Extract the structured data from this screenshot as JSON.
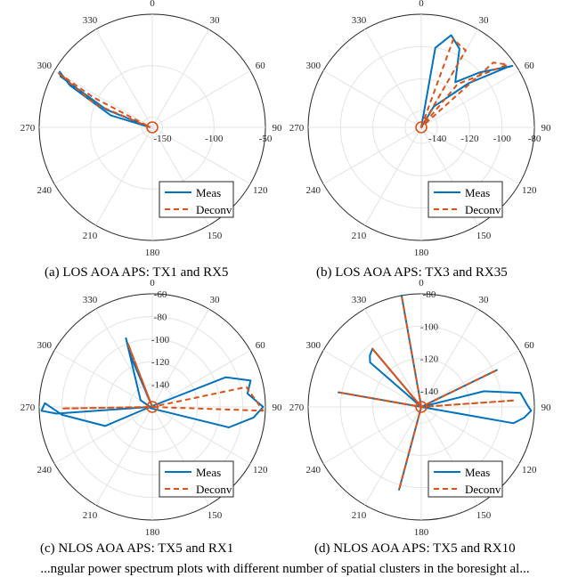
{
  "chart_data": [
    {
      "type": "polar-line",
      "caption": "(a) LOS AOA APS: TX1 and RX5",
      "angle_ticks": [
        "0",
        "30",
        "60",
        "90",
        "120",
        "150",
        "180",
        "210",
        "240",
        "270",
        "300",
        "330"
      ],
      "radial_ticks": [
        "-150",
        "-100",
        "-50"
      ],
      "rlim": [
        -160,
        -50
      ],
      "legend": [
        "Meas",
        "Deconv"
      ],
      "legend_position": "bottom-right",
      "series": [
        {
          "name": "Meas",
          "color": "#0072BD",
          "style": "solid",
          "angles": [
            270,
            286,
            297,
            301,
            299,
            291,
            270
          ],
          "values": [
            -158,
            -118,
            -70,
            -55,
            -58,
            -112,
            -158
          ]
        },
        {
          "name": "Deconv",
          "color": "#D95319",
          "style": "dashed",
          "angles": [
            270,
            292,
            300,
            297,
            270
          ],
          "values": [
            -158,
            -100,
            -55,
            -95,
            -158
          ]
        }
      ]
    },
    {
      "type": "polar-line",
      "caption": "(b) LOS AOA APS: TX3 and RX35",
      "angle_ticks": [
        "0",
        "30",
        "60",
        "90",
        "120",
        "150",
        "180",
        "210",
        "240",
        "270",
        "300",
        "330"
      ],
      "radial_ticks": [
        "-140",
        "-120",
        "-100",
        "-80"
      ],
      "rlim": [
        -150,
        -80
      ],
      "legend": [
        "Meas",
        "Deconv"
      ],
      "legend_position": "bottom-right",
      "series": [
        {
          "name": "Meas",
          "color": "#0072BD",
          "style": "solid",
          "angles": [
            270,
            10,
            18,
            26,
            37,
            47,
            56,
            55,
            47,
            31,
            270
          ],
          "values": [
            -150,
            -100,
            -90,
            -96,
            -115,
            -100,
            -82,
            -85,
            -110,
            -135,
            -150
          ]
        },
        {
          "name": "Deconv",
          "color": "#D95319",
          "style": "dashed",
          "angles": [
            270,
            20,
            30,
            270,
            48,
            54,
            40,
            270
          ],
          "values": [
            -150,
            -92,
            -95,
            -150,
            -90,
            -84,
            -115,
            -150
          ]
        }
      ]
    },
    {
      "type": "polar-line",
      "caption": "(c) NLOS AOA APS: TX5 and RX1",
      "angle_ticks": [
        "0",
        "30",
        "60",
        "90",
        "120",
        "150",
        "180",
        "210",
        "240",
        "270",
        "300",
        "330"
      ],
      "radial_ticks": [
        "-140",
        "-120",
        "-100",
        "-80",
        "-60"
      ],
      "rlim": [
        -160,
        -60
      ],
      "legend": [
        "Meas",
        "Deconv"
      ],
      "legend_position": "bottom-right",
      "series": [
        {
          "name": "Meas",
          "color": "#0072BD",
          "style": "solid",
          "angles": [
            270,
            337,
            339,
            300,
            270,
            266,
            268,
            272,
            265,
            248,
            270,
            68,
            75,
            82,
            90,
            96,
            105,
            240,
            270
          ],
          "values": [
            -160,
            -112,
            -95,
            -148,
            -158,
            -75,
            -62,
            -65,
            -80,
            -115,
            -158,
            -90,
            -70,
            -75,
            -62,
            -70,
            -90,
            -158,
            -160
          ]
        },
        {
          "name": "Deconv",
          "color": "#D95319",
          "style": "dashed",
          "angles": [
            270,
            339,
            270,
            270,
            78,
            92,
            270,
            270,
            269,
            270
          ],
          "values": [
            -160,
            -100,
            -160,
            -160,
            -75,
            -62,
            -160,
            -160,
            -80,
            -160
          ]
        }
      ]
    },
    {
      "type": "polar-line",
      "caption": "(d) NLOS AOA APS: TX5 and RX10",
      "angle_ticks": [
        "0",
        "30",
        "60",
        "90",
        "120",
        "150",
        "180",
        "210",
        "240",
        "270",
        "300",
        "330"
      ],
      "radial_ticks": [
        "-140",
        "-120",
        "-100",
        "-80"
      ],
      "rlim": [
        -150,
        -80
      ],
      "legend": [
        "Meas",
        "Deconv"
      ],
      "legend_position": "bottom-right",
      "series": [
        {
          "name": "Meas",
          "color": "#0072BD",
          "style": "solid",
          "angles": [
            270,
            320,
            315,
            311,
            270,
            350,
            270,
            280,
            270,
            64,
            270,
            76,
            82,
            88,
            92,
            96,
            100,
            270,
            195,
            270
          ],
          "values": [
            -150,
            -103,
            -105,
            -108,
            -150,
            -80,
            -150,
            -98,
            -150,
            -98,
            -150,
            -110,
            -88,
            -85,
            -82,
            -86,
            -92,
            -150,
            -97,
            -150
          ]
        },
        {
          "name": "Deconv",
          "color": "#D95319",
          "style": "dashed",
          "angles": [
            270,
            320,
            270,
            350,
            270,
            280,
            270,
            64,
            270,
            86,
            270,
            195,
            270
          ],
          "values": [
            -150,
            -103,
            -150,
            -80,
            -150,
            -98,
            -150,
            -98,
            -150,
            -92,
            -150,
            -97,
            -150
          ]
        }
      ]
    }
  ],
  "captions": {
    "a": "(a) LOS AOA APS: TX1 and RX5",
    "b": "(b) LOS AOA APS: TX3 and RX35",
    "c": "(c) NLOS AOA APS: TX5 and RX1",
    "d": "(d) NLOS AOA APS: TX5 and RX10",
    "figure": "...ngular power spectrum plots with different number of spatial clusters in the boresight al..."
  }
}
